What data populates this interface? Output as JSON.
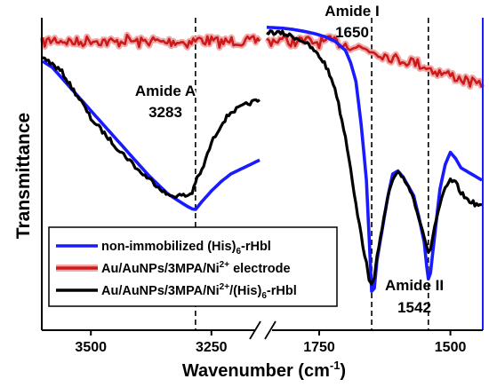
{
  "chart_data": {
    "type": "line",
    "title": "",
    "xlabel": "Wavenumber (cm",
    "xlabel_sup": "-1",
    "xlabel_close": ")",
    "ylabel": "Transmittance",
    "x_reversed": true,
    "axis_break": "between 3150 and 1850 cm-1",
    "panels": [
      {
        "name": "left",
        "xlim": [
          3600,
          3150
        ],
        "ticks": [
          3500,
          3250
        ],
        "tick_labels": [
          "3500",
          "3250"
        ]
      },
      {
        "name": "right",
        "xlim": [
          1850,
          1440
        ],
        "ticks": [
          1750,
          1500
        ],
        "tick_labels": [
          "1750",
          "1500"
        ]
      }
    ],
    "colors": {
      "non_immobilized": "#1a1aff",
      "electrode": "#cc1a1a",
      "electrode_glow": "#f0a8a8",
      "immobilized": "#000000"
    },
    "legend": {
      "placement": "bottom-left",
      "entries": [
        {
          "key": "non_immobilized",
          "text": "non-immobilized (His)",
          "sub": "6",
          "tail": "-rHbl"
        },
        {
          "key": "electrode",
          "text": "Au/AuNPs/3MPA/Ni",
          "sup": "2+",
          "tail": " electrode"
        },
        {
          "key": "immobilized",
          "text": "Au/AuNPs/3MPA/Ni",
          "sup": "2+",
          "tail2": "/(His)",
          "sub": "6",
          "tail": "-rHbl"
        }
      ]
    },
    "annotations": [
      {
        "name": "amide-a",
        "label": "Amide A",
        "value": "3283",
        "x": 3283
      },
      {
        "name": "amide-i",
        "label": "Amide I",
        "value": "1650",
        "x": 1650
      },
      {
        "name": "amide-ii",
        "label": "Amide II",
        "value": "1542",
        "x": 1542
      }
    ],
    "series": [
      {
        "key": "non_immobilized",
        "name": "non-immobilized (His)6-rHbl",
        "left": {
          "x": [
            3600,
            3580,
            3560,
            3540,
            3520,
            3500,
            3480,
            3460,
            3440,
            3420,
            3400,
            3380,
            3360,
            3340,
            3320,
            3300,
            3290,
            3283,
            3270,
            3250,
            3230,
            3210,
            3190,
            3170,
            3150
          ],
          "y": [
            0.865,
            0.845,
            0.81,
            0.775,
            0.74,
            0.705,
            0.67,
            0.635,
            0.6,
            0.565,
            0.53,
            0.495,
            0.465,
            0.435,
            0.415,
            0.395,
            0.387,
            0.385,
            0.41,
            0.445,
            0.475,
            0.5,
            0.515,
            0.53,
            0.545
          ]
        },
        "right": {
          "x": [
            1850,
            1820,
            1800,
            1780,
            1760,
            1740,
            1720,
            1700,
            1690,
            1680,
            1670,
            1660,
            1655,
            1650,
            1645,
            1640,
            1630,
            1620,
            1610,
            1600,
            1590,
            1580,
            1570,
            1560,
            1550,
            1545,
            1542,
            1538,
            1530,
            1520,
            1510,
            1500,
            1490,
            1480,
            1470,
            1460,
            1450,
            1440
          ],
          "y": [
            0.975,
            0.972,
            0.968,
            0.962,
            0.955,
            0.945,
            0.93,
            0.9,
            0.86,
            0.8,
            0.66,
            0.48,
            0.3,
            0.12,
            0.13,
            0.22,
            0.32,
            0.42,
            0.5,
            0.51,
            0.49,
            0.46,
            0.43,
            0.36,
            0.28,
            0.2,
            0.16,
            0.18,
            0.3,
            0.45,
            0.53,
            0.57,
            0.55,
            0.52,
            0.51,
            0.5,
            0.49,
            0.48
          ]
        }
      },
      {
        "key": "electrode",
        "name": "Au/AuNPs/3MPA/Ni2+ electrode",
        "left": {
          "x": [
            3600,
            3575,
            3550,
            3525,
            3500,
            3475,
            3450,
            3425,
            3400,
            3375,
            3350,
            3325,
            3300,
            3275,
            3250,
            3225,
            3200,
            3175,
            3150
          ],
          "y": [
            0.925,
            0.935,
            0.93,
            0.925,
            0.935,
            0.93,
            0.925,
            0.935,
            0.925,
            0.932,
            0.925,
            0.93,
            0.925,
            0.935,
            0.93,
            0.925,
            0.932,
            0.928,
            0.93
          ]
        },
        "right": {
          "x": [
            1850,
            1825,
            1800,
            1775,
            1750,
            1725,
            1700,
            1675,
            1650,
            1625,
            1600,
            1575,
            1550,
            1525,
            1500,
            1475,
            1450,
            1440
          ],
          "y": [
            0.93,
            0.935,
            0.928,
            0.93,
            0.925,
            0.93,
            0.92,
            0.91,
            0.9,
            0.885,
            0.87,
            0.865,
            0.85,
            0.83,
            0.82,
            0.805,
            0.79,
            0.78
          ]
        }
      },
      {
        "key": "immobilized",
        "name": "Au/AuNPs/3MPA/Ni2+/(His)6-rHbl",
        "left": {
          "x": [
            3600,
            3580,
            3560,
            3540,
            3520,
            3500,
            3480,
            3460,
            3440,
            3420,
            3400,
            3380,
            3360,
            3340,
            3320,
            3300,
            3290,
            3283,
            3270,
            3250,
            3230,
            3210,
            3190,
            3170,
            3150
          ],
          "y": [
            0.88,
            0.855,
            0.83,
            0.78,
            0.735,
            0.68,
            0.645,
            0.61,
            0.575,
            0.545,
            0.51,
            0.485,
            0.46,
            0.43,
            0.43,
            0.43,
            0.44,
            0.475,
            0.51,
            0.6,
            0.66,
            0.7,
            0.715,
            0.73,
            0.74
          ]
        },
        "right": {
          "x": [
            1850,
            1820,
            1800,
            1780,
            1760,
            1740,
            1720,
            1700,
            1690,
            1680,
            1670,
            1660,
            1655,
            1650,
            1645,
            1640,
            1630,
            1620,
            1610,
            1600,
            1590,
            1580,
            1570,
            1560,
            1550,
            1545,
            1542,
            1538,
            1530,
            1520,
            1510,
            1500,
            1490,
            1480,
            1470,
            1460,
            1450,
            1440
          ],
          "y": [
            0.96,
            0.955,
            0.945,
            0.93,
            0.9,
            0.86,
            0.78,
            0.62,
            0.52,
            0.4,
            0.3,
            0.21,
            0.15,
            0.14,
            0.17,
            0.24,
            0.32,
            0.42,
            0.48,
            0.5,
            0.49,
            0.46,
            0.42,
            0.36,
            0.3,
            0.26,
            0.24,
            0.26,
            0.33,
            0.4,
            0.45,
            0.48,
            0.47,
            0.44,
            0.42,
            0.41,
            0.4,
            0.4
          ]
        }
      }
    ]
  }
}
